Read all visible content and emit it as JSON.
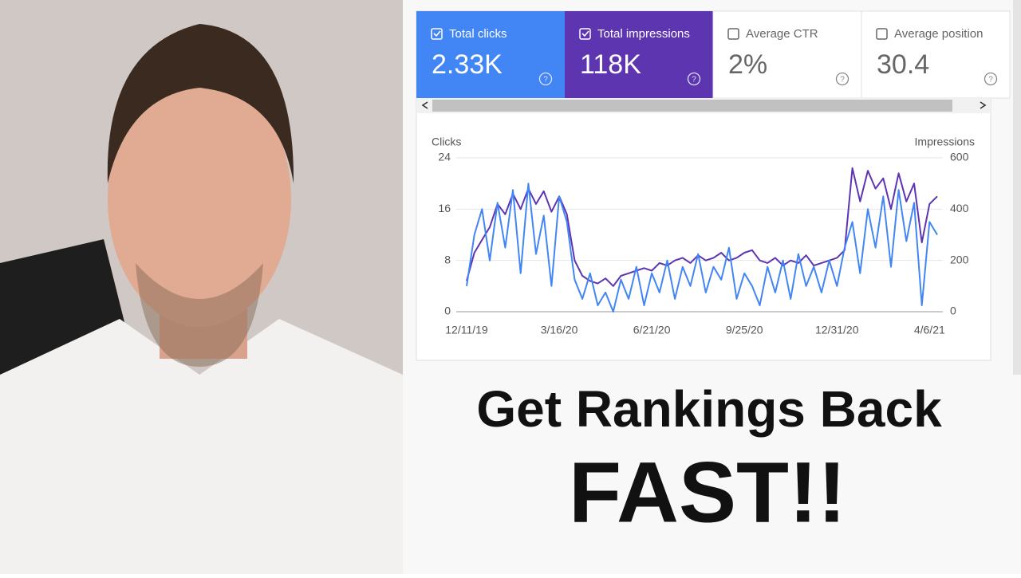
{
  "tabs": [
    {
      "label": "Total clicks",
      "value": "2.33K"
    },
    {
      "label": "Total impressions",
      "value": "118K"
    },
    {
      "label": "Average CTR",
      "value": "2%"
    },
    {
      "label": "Average position",
      "value": "30.4"
    }
  ],
  "chart_data": {
    "type": "line",
    "y_label": "Clicks",
    "y2_label": "Impressions",
    "xlim": [
      0,
      61
    ],
    "xticks": [
      {
        "value": 0,
        "label": "12/11/19"
      },
      {
        "value": 12,
        "label": "3/16/20"
      },
      {
        "value": 24,
        "label": "6/21/20"
      },
      {
        "value": 36,
        "label": "9/25/20"
      },
      {
        "value": 48,
        "label": "12/31/20"
      },
      {
        "value": 60,
        "label": "4/6/21"
      }
    ],
    "ylim": [
      0,
      24
    ],
    "yticks": [
      0,
      8,
      16,
      24
    ],
    "y2lim": [
      0,
      600
    ],
    "y2ticks": [
      0,
      200,
      400,
      600
    ],
    "grid": true,
    "series": [
      {
        "name": "Total impressions",
        "color": "#5e35b1",
        "axis": "y2",
        "values": [
          120,
          230,
          280,
          330,
          420,
          380,
          460,
          400,
          480,
          420,
          470,
          390,
          450,
          380,
          200,
          140,
          120,
          110,
          130,
          100,
          140,
          150,
          160,
          170,
          160,
          190,
          180,
          200,
          210,
          190,
          220,
          200,
          210,
          230,
          200,
          210,
          230,
          240,
          200,
          190,
          210,
          180,
          200,
          190,
          220,
          180,
          190,
          200,
          210,
          240,
          560,
          430,
          550,
          480,
          520,
          400,
          540,
          430,
          500,
          270,
          420,
          450
        ]
      },
      {
        "name": "Total clicks",
        "color": "#4285f4",
        "values": [
          4,
          12,
          16,
          8,
          17,
          10,
          19,
          6,
          20,
          9,
          15,
          4,
          18,
          14,
          5,
          2,
          6,
          1,
          3,
          0,
          5,
          2,
          7,
          1,
          6,
          3,
          8,
          2,
          7,
          4,
          9,
          3,
          7,
          5,
          10,
          2,
          6,
          4,
          1,
          7,
          3,
          8,
          2,
          9,
          4,
          7,
          3,
          8,
          4,
          10,
          14,
          6,
          16,
          10,
          18,
          7,
          19,
          11,
          17,
          1,
          14,
          12
        ]
      }
    ]
  },
  "headline": {
    "line1": "Get Rankings Back",
    "line2": "FAST!!"
  }
}
